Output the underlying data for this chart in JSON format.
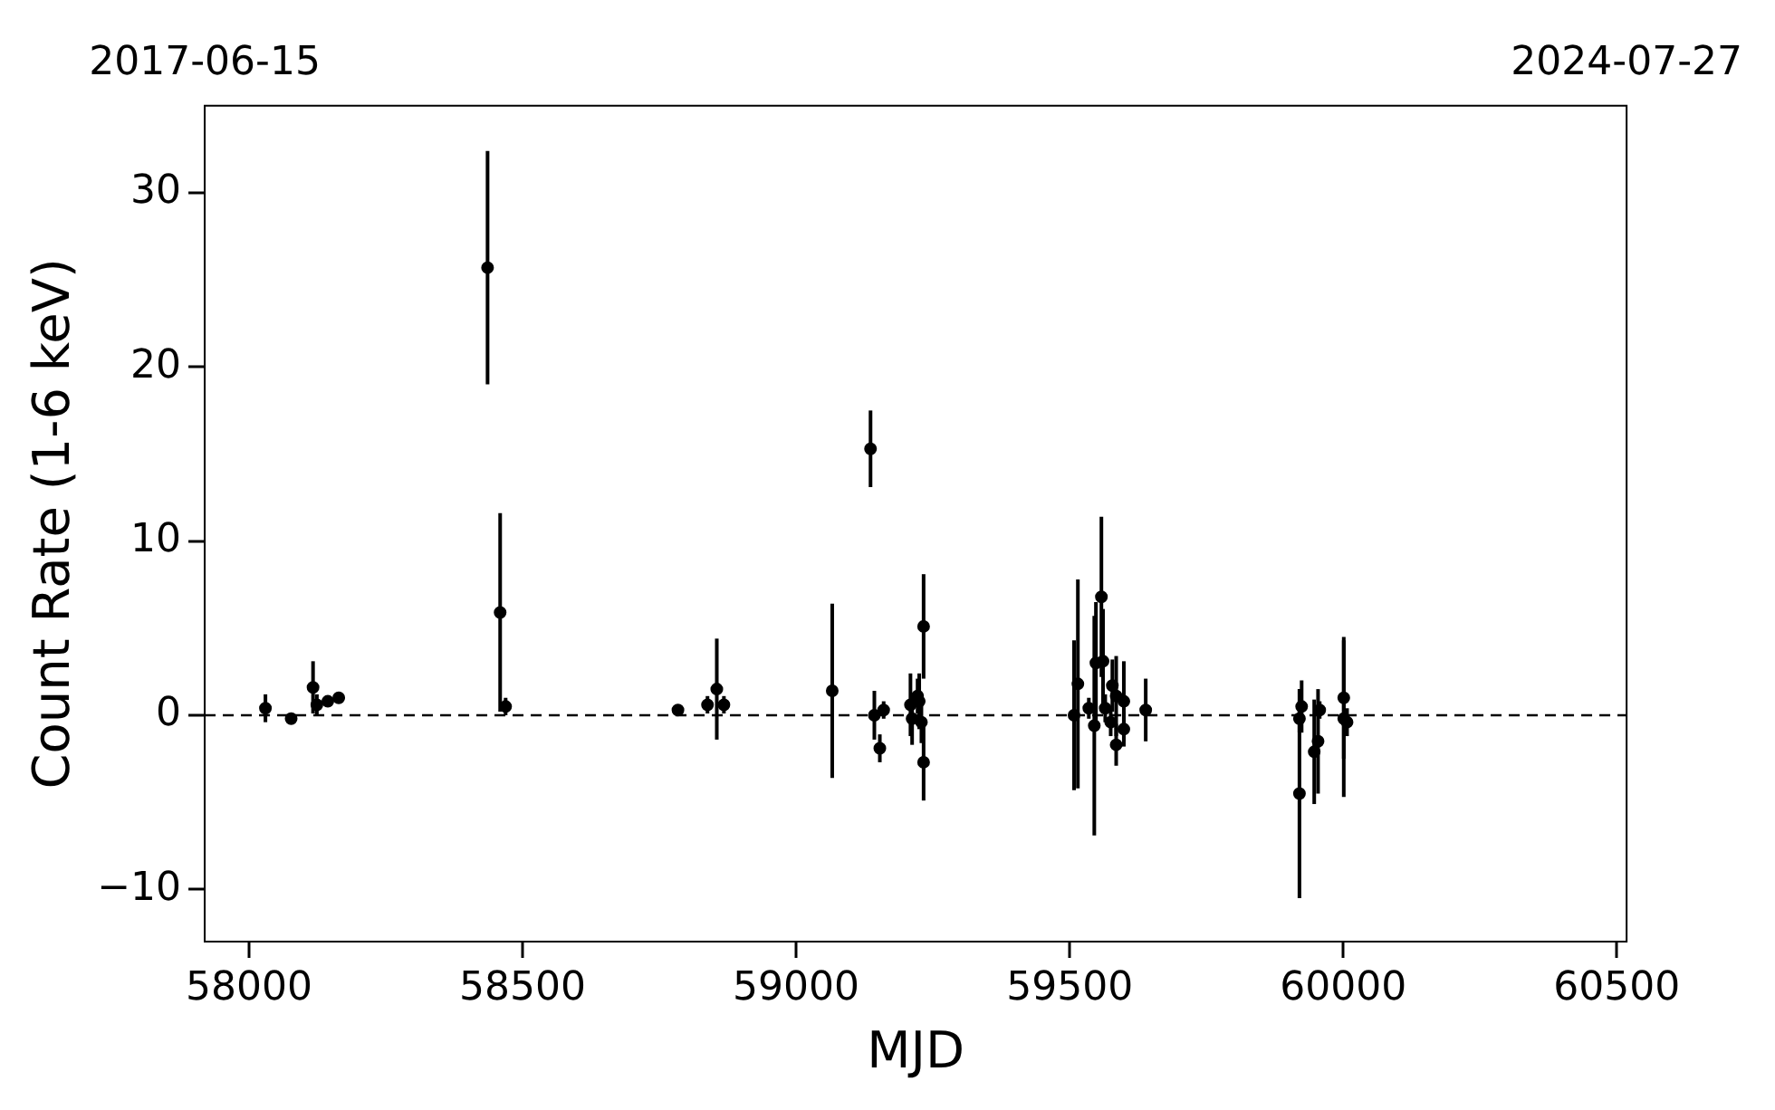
{
  "chart_data": {
    "type": "scatter",
    "xlabel": "MJD",
    "ylabel": "Count Rate (1-6 keV)",
    "xlim": [
      57919,
      60518
    ],
    "xticks": [
      58000,
      58500,
      59000,
      59500,
      60000,
      60500
    ],
    "x2lim": [
      "2017-06-15",
      "2024-07-27"
    ],
    "x2ticks": [
      "2017-06-15",
      "2024-07-27"
    ],
    "ylim": [
      -13,
      35
    ],
    "yticks": [
      {
        "value": -10,
        "label": "−10"
      },
      0,
      10,
      20,
      30
    ],
    "grid": false,
    "legend": false,
    "marker": "circle",
    "ref_lines": [
      {
        "axis": "y",
        "value": 0,
        "color": "#000000",
        "line_style": "dashed"
      }
    ],
    "series": [
      {
        "color": "#000000",
        "x": [
          58030,
          58077,
          58117,
          58124,
          58144,
          58164,
          58436,
          58459,
          58469,
          58784,
          58838,
          58855,
          58868,
          59066,
          59136,
          59143,
          59153,
          59160,
          59209,
          59212,
          59225,
          59229,
          59222,
          59233,
          59233,
          59508,
          59515,
          59535,
          59545,
          59548,
          59558,
          59561,
          59565,
          59575,
          59578,
          59585,
          59585,
          59599,
          59599,
          59639,
          59920,
          59920,
          59924,
          59947,
          59954,
          59957,
          60001,
          60001,
          60007
        ],
        "values": [
          0.4,
          -0.2,
          1.6,
          0.6,
          0.8,
          1.0,
          25.7,
          5.9,
          0.5,
          0.3,
          0.6,
          1.5,
          0.6,
          1.4,
          15.3,
          0.0,
          -1.9,
          0.3,
          0.6,
          -0.2,
          0.8,
          -0.4,
          1.1,
          5.1,
          -2.7,
          0.0,
          1.8,
          0.4,
          -0.6,
          3.0,
          6.8,
          3.1,
          0.4,
          -0.4,
          1.7,
          1.1,
          -1.7,
          0.8,
          -0.8,
          0.3,
          -4.5,
          -0.2,
          0.5,
          -2.1,
          -1.5,
          0.3,
          1.0,
          -0.2,
          -0.4
        ],
        "errors": [
          0.8,
          0.2,
          1.5,
          0.6,
          0.3,
          0.2,
          6.7,
          5.7,
          0.5,
          0.3,
          0.5,
          2.9,
          0.5,
          5.0,
          2.2,
          1.4,
          0.8,
          0.5,
          1.8,
          1.5,
          1.6,
          1.2,
          1.0,
          3.0,
          2.2,
          4.3,
          6.0,
          0.6,
          6.3,
          3.5,
          4.6,
          3.0,
          0.8,
          0.8,
          1.5,
          2.3,
          1.2,
          2.3,
          1.0,
          1.8,
          6.0,
          0.8,
          1.5,
          3.0,
          3.0,
          0.5,
          3.5,
          4.5,
          0.8
        ]
      }
    ]
  }
}
